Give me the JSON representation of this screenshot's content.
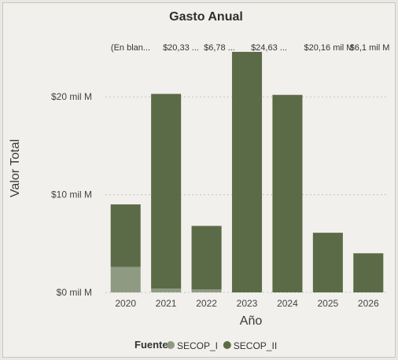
{
  "chart_data": {
    "type": "bar",
    "stacked": true,
    "title": "Gasto Anual",
    "xlabel": "Año",
    "ylabel": "Valor Total",
    "categories": [
      "2020",
      "2021",
      "2022",
      "2023",
      "2024",
      "2025",
      "2026"
    ],
    "series": [
      {
        "name": "SECOP_I",
        "color": "#8f9a82",
        "values": [
          2.6,
          0.4,
          0.3,
          0.0,
          0.0,
          0.0,
          0.0
        ]
      },
      {
        "name": "SECOP_II",
        "color": "#5c6b47",
        "values": [
          6.4,
          19.9,
          6.5,
          24.6,
          20.2,
          6.1,
          4.0
        ]
      }
    ],
    "data_labels": [
      "(En blan...",
      "$20,33 ...",
      "$6,78 ...",
      "$24,63 ...",
      "$20,16 mil M",
      "$6,1 mil M",
      ""
    ],
    "yticks": [
      {
        "value": 0,
        "label": "$0 mil M"
      },
      {
        "value": 10,
        "label": "$10 mil M"
      },
      {
        "value": 20,
        "label": "$20 mil M"
      }
    ],
    "ylim": [
      0,
      25
    ],
    "grid": true,
    "legend": {
      "title": "Fuente",
      "position": "bottom"
    }
  }
}
